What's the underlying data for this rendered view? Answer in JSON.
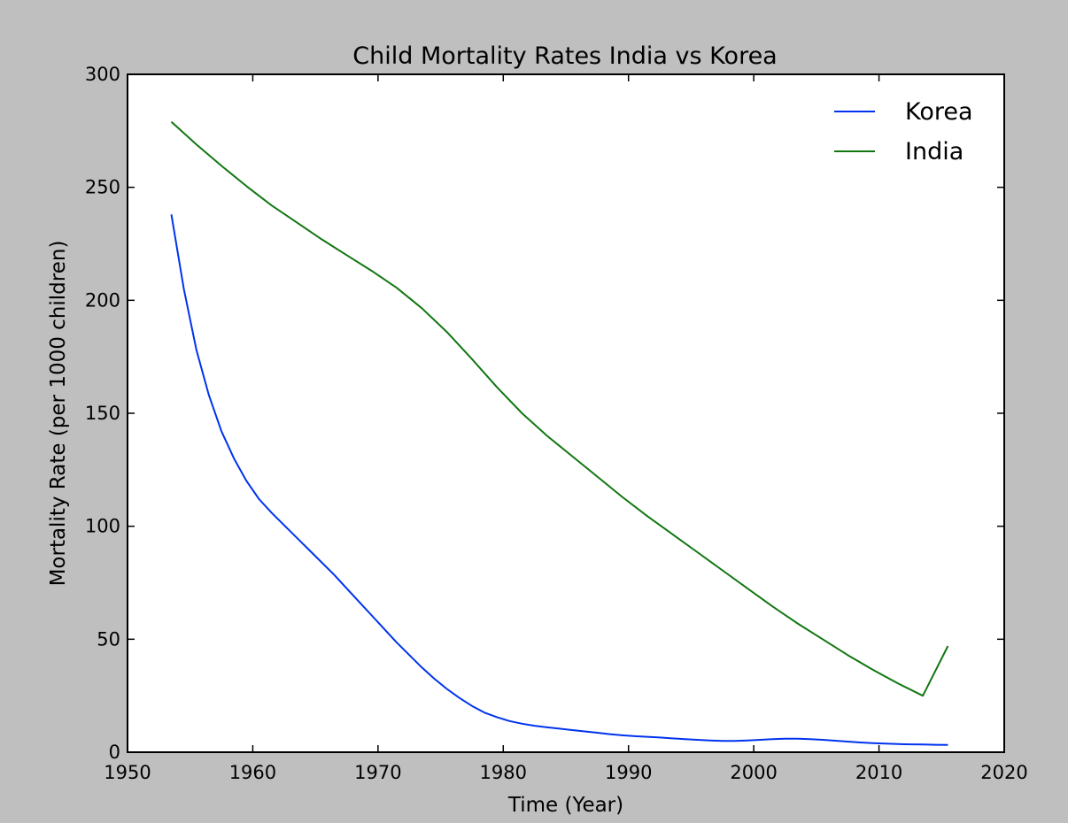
{
  "chart_data": {
    "type": "line",
    "title": "Child Mortality Rates India vs Korea",
    "xlabel": "Time (Year)",
    "ylabel": "Mortality Rate (per 1000 children)",
    "xlim": [
      1950,
      2020
    ],
    "ylim": [
      0,
      300
    ],
    "xticks": [
      "1950",
      "1960",
      "1970",
      "1980",
      "1990",
      "2000",
      "2010",
      "2020"
    ],
    "yticks": [
      "0",
      "50",
      "100",
      "150",
      "200",
      "250",
      "300"
    ],
    "grid": false,
    "legend_position": "top-right",
    "series": [
      {
        "name": "Korea",
        "color": "#0033ee",
        "x": [
          1953.5,
          1954.5,
          1955.5,
          1956.5,
          1957.5,
          1958.5,
          1959.5,
          1960.5,
          1961.5,
          1962.5,
          1963.5,
          1964.5,
          1965.5,
          1966.5,
          1967.5,
          1968.5,
          1969.5,
          1970.5,
          1971.5,
          1972.5,
          1973.5,
          1974.5,
          1975.5,
          1976.5,
          1977.5,
          1978.5,
          1979.5,
          1980.5,
          1981.5,
          1982.5,
          1983.5,
          1984.5,
          1985.5,
          1986.5,
          1987.5,
          1988.5,
          1989.5,
          1990.5,
          1991.5,
          1992.5,
          1993.5,
          1994.5,
          1995.5,
          1996.5,
          1997.5,
          1998.5,
          1999.5,
          2000.5,
          2001.5,
          2002.5,
          2003.5,
          2004.5,
          2005.5,
          2006.5,
          2007.5,
          2008.5,
          2009.5,
          2010.5,
          2011.5,
          2012.5,
          2013.5,
          2014.5,
          2015.5
        ],
        "values": [
          238,
          205,
          178,
          158,
          142,
          130,
          120,
          112,
          106,
          100.5,
          95,
          89.5,
          84,
          78.5,
          72.5,
          66.5,
          60.5,
          54.5,
          48.5,
          43,
          37.5,
          32.5,
          28,
          24,
          20.5,
          17.5,
          15.5,
          13.8,
          12.6,
          11.7,
          11,
          10.4,
          9.8,
          9.2,
          8.6,
          8,
          7.5,
          7.1,
          6.8,
          6.5,
          6.1,
          5.8,
          5.5,
          5.2,
          5,
          5,
          5.2,
          5.5,
          5.8,
          6,
          6,
          5.8,
          5.5,
          5.1,
          4.7,
          4.3,
          4,
          3.8,
          3.6,
          3.5,
          3.4,
          3.3,
          3.2
        ]
      },
      {
        "name": "India",
        "color": "#117711",
        "x": [
          1953.5,
          1955.5,
          1957.5,
          1959.5,
          1961.5,
          1963.5,
          1965.5,
          1967.5,
          1969.5,
          1971.5,
          1973.5,
          1975.5,
          1977.5,
          1979.5,
          1981.5,
          1983.5,
          1985.5,
          1987.5,
          1989.5,
          1991.5,
          1993.5,
          1995.5,
          1997.5,
          1999.5,
          2001.5,
          2003.5,
          2005.5,
          2007.5,
          2009.5,
          2011.5,
          2013.5,
          2015.5
        ],
        "values": [
          279,
          269,
          259.5,
          250.5,
          242,
          234.5,
          227,
          220,
          213,
          205.5,
          196.5,
          186,
          174,
          161.5,
          150,
          140,
          131,
          122,
          113,
          104.5,
          96.5,
          88.5,
          80.5,
          72.5,
          64.5,
          57,
          50,
          43,
          36.5,
          30.5,
          25,
          47
        ]
      }
    ]
  }
}
